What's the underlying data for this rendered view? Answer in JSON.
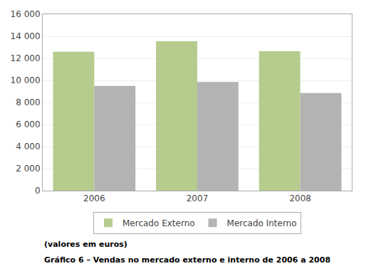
{
  "chart_data": {
    "type": "bar",
    "categories": [
      "2006",
      "2007",
      "2008"
    ],
    "series": [
      {
        "name": "Mercado Externo",
        "color": "#b5cc8e",
        "values": [
          12600,
          13550,
          12650
        ]
      },
      {
        "name": "Mercado Interno",
        "color": "#b3b3b3",
        "values": [
          9500,
          9850,
          8850
        ]
      }
    ],
    "ylim": [
      0,
      16000
    ],
    "yticks": [
      0,
      {
        "value": 2000,
        "label": "2 000"
      },
      {
        "value": 4000,
        "label": "4 000"
      },
      {
        "value": 6000,
        "label": "6 000"
      },
      {
        "value": 8000,
        "label": "8 000"
      },
      {
        "value": 10000,
        "label": "10 000"
      },
      {
        "value": 12000,
        "label": "12 000"
      },
      {
        "value": 14000,
        "label": "14 000"
      },
      {
        "value": 16000,
        "label": "16 000"
      }
    ],
    "grid": true,
    "legend": "bottom",
    "annotations": [
      "(valores em euros)",
      "Gráfico 6 – Vendas no mercado externo e interno de 2006 a 2008"
    ]
  }
}
